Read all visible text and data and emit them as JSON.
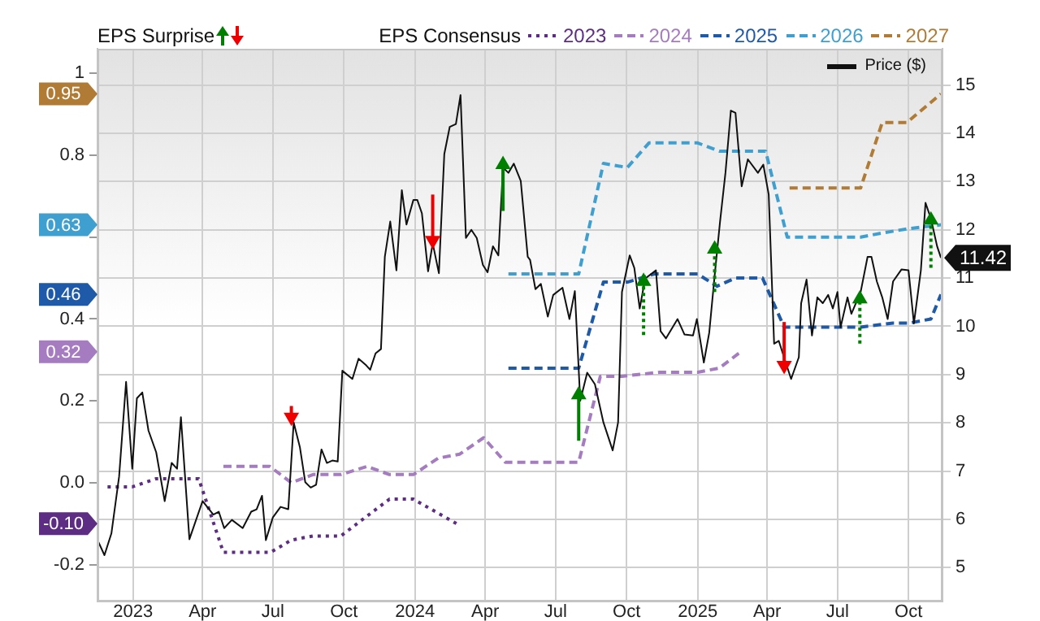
{
  "chart_data": {
    "type": "line",
    "annotations": [
      "EPS Surprise",
      "EPS Consensus"
    ],
    "xlim": [
      "2022-11-16",
      "2025-11-14"
    ],
    "xticks": [
      {
        "value": "2023-01-01",
        "label": "2023"
      },
      {
        "value": "2023-04-01",
        "label": "Apr"
      },
      {
        "value": "2023-07-01",
        "label": "Jul"
      },
      {
        "value": "2023-10-01",
        "label": "Oct"
      },
      {
        "value": "2024-01-01",
        "label": "2024"
      },
      {
        "value": "2024-04-01",
        "label": "Apr"
      },
      {
        "value": "2024-07-01",
        "label": "Jul"
      },
      {
        "value": "2024-10-01",
        "label": "Oct"
      },
      {
        "value": "2025-01-01",
        "label": "2025"
      },
      {
        "value": "2025-04-01",
        "label": "Apr"
      },
      {
        "value": "2025-07-01",
        "label": "Jul"
      },
      {
        "value": "2025-10-01",
        "label": "Oct"
      }
    ],
    "ylim": [
      -0.29,
      1.06
    ],
    "yticks": [
      {
        "value": -0.2,
        "label": "-0.2"
      },
      {
        "value": -0.1,
        "label": "-0.10"
      },
      {
        "value": 0,
        "label": "0.0"
      },
      0.2,
      0.32,
      0.4,
      0.46,
      {
        "value": 0.6,
        "label": null
      },
      0.63,
      0.8,
      0.95,
      1
    ],
    "y2lim": [
      4.3,
      15.75
    ],
    "y2ticks": [
      5,
      6,
      7,
      8,
      9,
      10,
      11,
      12,
      13,
      14,
      15
    ],
    "grid": true,
    "legend": "top",
    "marker": "none",
    "series": [
      {
        "name": "2023",
        "color": "#5c2d82",
        "line_style": "dotted",
        "x": [
          "2022-11-29",
          "2022-12-31",
          "2023-01-31",
          "2023-03-27",
          "2023-04-28",
          "2023-06-28",
          "2023-07-25",
          "2023-08-22",
          "2023-09-27",
          "2023-11-29",
          "2023-12-30",
          "2024-02-24"
        ],
        "values": [
          -0.01,
          -0.01,
          0.01,
          0.01,
          -0.17,
          -0.17,
          -0.14,
          -0.13,
          -0.13,
          -0.04,
          -0.04,
          -0.1
        ]
      },
      {
        "name": "2024",
        "color": "#a57cc0",
        "line_style": "dashed",
        "x": [
          "2023-04-28",
          "2023-06-27",
          "2023-07-25",
          "2023-08-22",
          "2023-09-27",
          "2023-10-31",
          "2023-11-29",
          "2023-12-30",
          "2024-01-31",
          "2024-02-28",
          "2024-03-30",
          "2024-04-27",
          "2024-07-31",
          "2024-08-28",
          "2024-09-25",
          "2024-11-13",
          "2025-01-01",
          "2025-01-29",
          "2025-02-26"
        ],
        "values": [
          0.04,
          0.04,
          0.0,
          0.02,
          0.02,
          0.04,
          0.02,
          0.02,
          0.06,
          0.07,
          0.11,
          0.05,
          0.05,
          0.26,
          0.26,
          0.27,
          0.27,
          0.28,
          0.32
        ]
      },
      {
        "name": "2025",
        "color": "#1e5aa8",
        "line_style": "dashed",
        "x": [
          "2024-05-01",
          "2024-07-31",
          "2024-09-01",
          "2024-10-02",
          "2024-11-06",
          "2025-01-01",
          "2025-01-26",
          "2025-02-19",
          "2025-03-26",
          "2025-04-23",
          "2025-05-21",
          "2025-07-31",
          "2025-09-11",
          "2025-10-02",
          "2025-10-30",
          "2025-11-12"
        ],
        "values": [
          0.28,
          0.28,
          0.49,
          0.49,
          0.51,
          0.51,
          0.48,
          0.5,
          0.5,
          0.38,
          0.38,
          0.38,
          0.39,
          0.39,
          0.4,
          0.46
        ]
      },
      {
        "name": "2026",
        "color": "#3fa0d0",
        "line_style": "dashed",
        "x": [
          "2024-05-01",
          "2024-07-31",
          "2024-09-01",
          "2024-10-02",
          "2024-10-30",
          "2025-01-01",
          "2025-01-29",
          "2025-03-30",
          "2025-04-27",
          "2025-07-31",
          "2025-08-28",
          "2025-09-29",
          "2025-11-12"
        ],
        "values": [
          0.51,
          0.51,
          0.78,
          0.77,
          0.83,
          0.83,
          0.81,
          0.81,
          0.6,
          0.6,
          0.61,
          0.62,
          0.63
        ]
      },
      {
        "name": "2027",
        "color": "#b07c35",
        "line_style": "dashed",
        "x": [
          "2025-04-30",
          "2025-07-31",
          "2025-08-28",
          "2025-09-29",
          "2025-11-12"
        ],
        "values": [
          0.72,
          0.72,
          0.88,
          0.88,
          0.95
        ]
      },
      {
        "name": "Price ($)",
        "color": "#111111",
        "axis": "y2",
        "line_style": "solid",
        "x": [
          "2022-11-17",
          "2022-11-25",
          "2022-12-04",
          "2022-12-14",
          "2022-12-23",
          "2022-12-31",
          "2023-01-06",
          "2023-01-13",
          "2023-01-21",
          "2023-01-31",
          "2023-02-11",
          "2023-02-20",
          "2023-02-27",
          "2023-03-04",
          "2023-03-15",
          "2023-04-01",
          "2023-04-15",
          "2023-04-22",
          "2023-04-29",
          "2023-05-09",
          "2023-05-23",
          "2023-06-03",
          "2023-06-10",
          "2023-06-17",
          "2023-06-22",
          "2023-07-01",
          "2023-07-11",
          "2023-07-21",
          "2023-07-28",
          "2023-08-05",
          "2023-08-12",
          "2023-08-19",
          "2023-08-26",
          "2023-09-02",
          "2023-09-09",
          "2023-09-16",
          "2023-09-23",
          "2023-09-29",
          "2023-10-12",
          "2023-10-20",
          "2023-10-30",
          "2023-11-04",
          "2023-11-11",
          "2023-11-18",
          "2023-11-23",
          "2023-11-30",
          "2023-12-08",
          "2023-12-15",
          "2023-12-21",
          "2023-12-30",
          "2024-01-04",
          "2024-01-10",
          "2024-01-18",
          "2024-01-24",
          "2024-02-01",
          "2024-02-08",
          "2024-02-15",
          "2024-02-23",
          "2024-02-29",
          "2024-03-07",
          "2024-03-14",
          "2024-03-21",
          "2024-03-29",
          "2024-04-04",
          "2024-04-11",
          "2024-04-18",
          "2024-04-24",
          "2024-05-01",
          "2024-05-08",
          "2024-05-17",
          "2024-05-26",
          "2024-05-29",
          "2024-06-05",
          "2024-06-12",
          "2024-06-21",
          "2024-06-28",
          "2024-07-10",
          "2024-07-19",
          "2024-07-26",
          "2024-08-02",
          "2024-08-11",
          "2024-08-21",
          "2024-09-01",
          "2024-09-13",
          "2024-09-20",
          "2024-09-25",
          "2024-10-05",
          "2024-10-11",
          "2024-10-18",
          "2024-10-25",
          "2024-11-08",
          "2024-11-14",
          "2024-11-21",
          "2024-12-06",
          "2024-12-15",
          "2024-12-26",
          "2024-12-31",
          "2025-01-09",
          "2025-01-16",
          "2025-01-23",
          "2025-01-30",
          "2025-02-06",
          "2025-02-13",
          "2025-02-19",
          "2025-02-27",
          "2025-03-07",
          "2025-03-20",
          "2025-03-27",
          "2025-04-03",
          "2025-04-10",
          "2025-04-16",
          "2025-04-24",
          "2025-05-02",
          "2025-05-12",
          "2025-05-15",
          "2025-05-22",
          "2025-05-29",
          "2025-06-05",
          "2025-06-12",
          "2025-06-19",
          "2025-06-25",
          "2025-07-01",
          "2025-07-05",
          "2025-07-14",
          "2025-07-19",
          "2025-07-31",
          "2025-08-09",
          "2025-08-14",
          "2025-08-21",
          "2025-08-28",
          "2025-09-04",
          "2025-09-11",
          "2025-09-22",
          "2025-10-01",
          "2025-10-08",
          "2025-10-17",
          "2025-10-23",
          "2025-10-30",
          "2025-11-07",
          "2025-11-12"
        ],
        "values": [
          5.54,
          5.26,
          5.71,
          6.89,
          8.85,
          7.05,
          8.51,
          8.63,
          7.84,
          7.39,
          6.38,
          7.17,
          7.05,
          8.12,
          5.59,
          6.38,
          6.1,
          6.16,
          5.82,
          5.99,
          5.82,
          6.16,
          6.21,
          6.49,
          5.57,
          6.04,
          6.26,
          6.21,
          8.01,
          7.5,
          6.77,
          6.66,
          6.72,
          7.45,
          7.17,
          7.22,
          7.2,
          9.08,
          8.91,
          9.33,
          9.19,
          9.1,
          9.44,
          9.53,
          11.44,
          12.17,
          11.16,
          12.82,
          12.11,
          12.62,
          12.62,
          12.34,
          11.14,
          11.72,
          11.1,
          13.57,
          14.13,
          14.19,
          14.79,
          11.83,
          12.0,
          11.83,
          11.27,
          11.12,
          11.66,
          11.47,
          13.29,
          13.18,
          13.37,
          13.01,
          11.44,
          11.38,
          10.77,
          10.88,
          10.2,
          10.65,
          10.8,
          10.15,
          10.73,
          8.46,
          9.04,
          8.8,
          8.01,
          7.43,
          8.01,
          10.71,
          11.47,
          11.21,
          10.37,
          10.99,
          11.16,
          9.9,
          9.75,
          10.15,
          9.83,
          9.81,
          10.15,
          9.25,
          9.87,
          11.05,
          12.17,
          13.18,
          14.47,
          14.42,
          12.9,
          13.46,
          13.18,
          13.35,
          12.73,
          9.64,
          9.7,
          9.3,
          8.91,
          9.36,
          10.48,
          10.97,
          9.81,
          10.6,
          10.48,
          10.65,
          10.37,
          10.71,
          9.98,
          10.6,
          10.26,
          10.71,
          11.44,
          11.44,
          10.93,
          10.6,
          10.15,
          10.93,
          11.18,
          11.16,
          10.06,
          11.16,
          12.56,
          12.23,
          11.66,
          11.42
        ],
        "value_labels": [
          null,
          null,
          null,
          null,
          null,
          null,
          null,
          null,
          null,
          null,
          null,
          null,
          null,
          null,
          null,
          null,
          null,
          null,
          null,
          null,
          null,
          null,
          null,
          null,
          null,
          null,
          null,
          null,
          null,
          null,
          null,
          null,
          null,
          null,
          null,
          null,
          null,
          null,
          null,
          null,
          null,
          null,
          null,
          null,
          null,
          null,
          null,
          null,
          null,
          null,
          null,
          null,
          null,
          null,
          null,
          null,
          null,
          null,
          null,
          null,
          null,
          null,
          null,
          null,
          null,
          null,
          null,
          null,
          null,
          null,
          null,
          null,
          null,
          null,
          null,
          null,
          null,
          null,
          null,
          null,
          null,
          null,
          null,
          null,
          null,
          null,
          null,
          null,
          null,
          null,
          null,
          null,
          null,
          null,
          null,
          null,
          null,
          null,
          null,
          null,
          null,
          null,
          null,
          null,
          null,
          null,
          null,
          null,
          null,
          null,
          null,
          null,
          null,
          null,
          null,
          null,
          null,
          null,
          null,
          null,
          null,
          null,
          null,
          null,
          null,
          null,
          null,
          null,
          null,
          null,
          null,
          null,
          null,
          null,
          null,
          null,
          null,
          null,
          null,
          "11.42"
        ]
      },
      {
        "type": "scatter",
        "color": "#008000",
        "axis": "y2",
        "marker": "triangle",
        "line_style": "solid",
        "x": [
          "2024-04-24",
          "2024-07-31"
        ],
        "values": [
          13.35,
          8.58
        ],
        "errors": [
          [
            12.39,
            13.35
          ],
          [
            7.63,
            8.58
          ]
        ]
      },
      {
        "type": "scatter",
        "color": "#008000",
        "axis": "y2",
        "marker": "triangle",
        "line_style": "dotted",
        "x": [
          "2024-10-23",
          "2025-01-23",
          "2025-07-30",
          "2025-10-30"
        ],
        "values": [
          10.93,
          11.6,
          10.57,
          12.2
        ],
        "errors": [
          [
            9.82,
            10.93
          ],
          [
            10.71,
            11.6
          ],
          [
            9.64,
            10.57
          ],
          [
            11.21,
            12.2
          ]
        ]
      },
      {
        "type": "scatter",
        "color": "#ee0000",
        "axis": "y2",
        "marker": "triangle",
        "line_style": "solid",
        "x": [
          "2023-07-25",
          "2024-01-24",
          "2025-04-23"
        ],
        "values": [
          8.12,
          11.78,
          9.19
        ],
        "errors": [
          [
            8.12,
            8.35
          ],
          [
            11.78,
            12.73
          ],
          [
            9.19,
            10.09
          ]
        ]
      }
    ]
  }
}
